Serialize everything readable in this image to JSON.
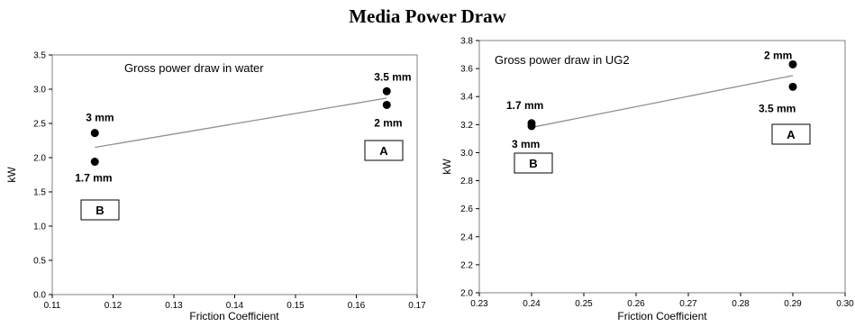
{
  "title": "Media Power Draw",
  "chart_data": [
    {
      "type": "scatter",
      "title": "Gross power draw in water",
      "xlabel": "Friction Coefficient",
      "ylabel": "kW",
      "xlim": [
        0.11,
        0.17
      ],
      "ylim": [
        0.0,
        3.5
      ],
      "xticks": [
        "0.11",
        "0.12",
        "0.13",
        "0.14",
        "0.15",
        "0.16",
        "0.17"
      ],
      "yticks": [
        "0.0",
        "0.5",
        "1.0",
        "1.5",
        "2.0",
        "2.5",
        "3.0",
        "3.5"
      ],
      "grid": false,
      "points": [
        {
          "x": 0.117,
          "y": 2.36,
          "label": "3 mm"
        },
        {
          "x": 0.117,
          "y": 1.94,
          "label": "1.7 mm"
        },
        {
          "x": 0.165,
          "y": 2.97,
          "label": "3.5  mm"
        },
        {
          "x": 0.165,
          "y": 2.77,
          "label": "2  mm"
        }
      ],
      "trendline": {
        "x": [
          0.117,
          0.165
        ],
        "y": [
          2.15,
          2.87
        ]
      },
      "annotations": [
        "A",
        "B"
      ]
    },
    {
      "type": "scatter",
      "title": "Gross power draw  in UG2",
      "xlabel": "Friction Coefficient",
      "ylabel": "kW",
      "xlim": [
        0.23,
        0.3
      ],
      "ylim": [
        2.0,
        3.8
      ],
      "xticks": [
        "0.23",
        "0.24",
        "0.25",
        "0.26",
        "0.27",
        "0.28",
        "0.29",
        "0.30"
      ],
      "yticks": [
        "2.0",
        "2.2",
        "2.4",
        "2.6",
        "2.8",
        "3.0",
        "3.2",
        "3.4",
        "3.6",
        "3.8"
      ],
      "grid": false,
      "points": [
        {
          "x": 0.24,
          "y": 3.21,
          "label": "1.7 mm"
        },
        {
          "x": 0.24,
          "y": 3.19,
          "label": "3 mm"
        },
        {
          "x": 0.29,
          "y": 3.63,
          "label": "2  mm"
        },
        {
          "x": 0.29,
          "y": 3.47,
          "label": "3.5  mm"
        }
      ],
      "trendline": {
        "x": [
          0.24,
          0.29
        ],
        "y": [
          3.18,
          3.55
        ]
      },
      "annotations": [
        "A",
        "B"
      ]
    }
  ]
}
